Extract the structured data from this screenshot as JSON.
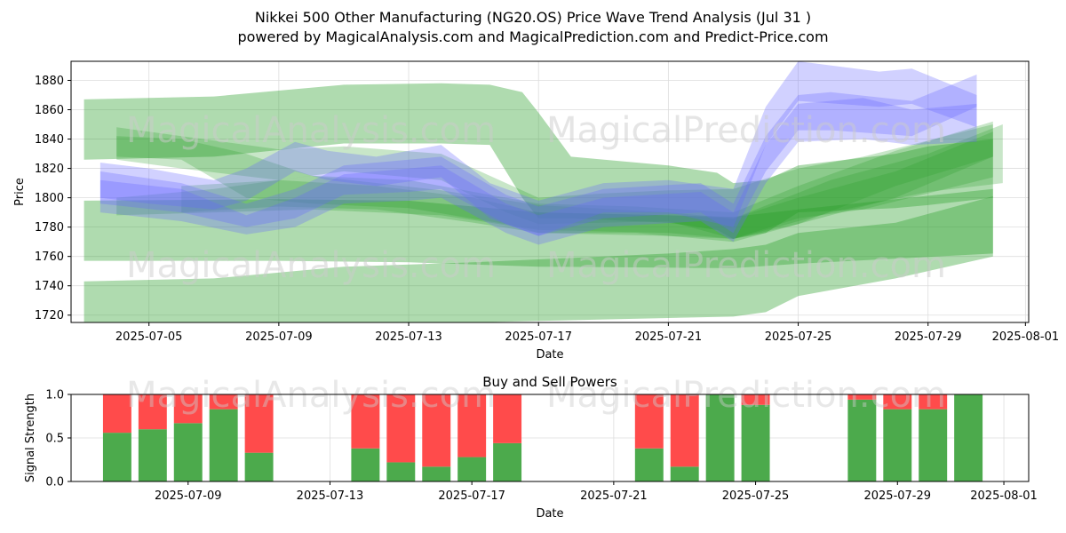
{
  "header": {
    "title": "Nikkei 500 Other Manufacturing (NG20.OS) Price Wave Trend Analysis (Jul 31 )",
    "subtitle": "powered by MagicalAnalysis.com and MagicalPrediction.com and Predict-Price.com"
  },
  "watermarks": [
    "MagicalAnalysis.com",
    "MagicalPrediction.com"
  ],
  "colors": {
    "band_green": "#2ca02c",
    "band_blue": "#6666ff",
    "buy_green": "#4caa4c",
    "sell_red": "#ff4b4b",
    "grid": "#dddddd"
  },
  "chart_data": [
    {
      "type": "area",
      "title": "",
      "xlabel": "Date",
      "ylabel": "Price",
      "xlim": [
        "2025-07-02.6",
        "2025-08-01.1"
      ],
      "ylim": [
        1715,
        1893
      ],
      "grid": true,
      "x_ticks": [
        "2025-07-05",
        "2025-07-09",
        "2025-07-13",
        "2025-07-17",
        "2025-07-21",
        "2025-07-25",
        "2025-07-29",
        "2025-08-01"
      ],
      "y_ticks": [
        1720,
        1740,
        1760,
        1780,
        1800,
        1820,
        1840,
        1860,
        1880
      ],
      "bands": [
        {
          "color": "green",
          "opacity": 0.38,
          "x": [
            "2025-07-03",
            "2025-07-07",
            "2025-07-11",
            "2025-07-14",
            "2025-07-15.5",
            "2025-07-16.5",
            "2025-07-17",
            "2025-07-18",
            "2025-07-21",
            "2025-07-22.5",
            "2025-07-23",
            "2025-07-24",
            "2025-07-25",
            "2025-07-28",
            "2025-07-29",
            "2025-07-31"
          ],
          "upper": [
            1867,
            1869,
            1877,
            1878,
            1877,
            1872,
            1858,
            1828,
            1822,
            1817,
            1810,
            1812,
            1822,
            1830,
            1835,
            1840
          ],
          "lower": [
            1826,
            1828,
            1837,
            1837,
            1836,
            1800,
            1786,
            1786,
            1783,
            1778,
            1772,
            1776,
            1790,
            1793,
            1795,
            1800
          ]
        },
        {
          "color": "green",
          "opacity": 0.38,
          "x": [
            "2025-07-03",
            "2025-07-09",
            "2025-07-13",
            "2025-07-17",
            "2025-07-23",
            "2025-07-25",
            "2025-07-31"
          ],
          "upper": [
            1798,
            1799,
            1798,
            1790,
            1787,
            1792,
            1806
          ],
          "lower": [
            1757,
            1757,
            1756,
            1753,
            1752,
            1755,
            1762
          ]
        },
        {
          "color": "green",
          "opacity": 0.38,
          "x": [
            "2025-07-03",
            "2025-07-07",
            "2025-07-11",
            "2025-07-15",
            "2025-07-17",
            "2025-07-21",
            "2025-07-23",
            "2025-07-24",
            "2025-07-25",
            "2025-07-28",
            "2025-07-31"
          ],
          "upper": [
            1743,
            1745,
            1753,
            1756,
            1758,
            1762,
            1765,
            1768,
            1776,
            1783,
            1801
          ],
          "lower": [
            1715,
            1715,
            1715,
            1715,
            1716,
            1718,
            1719,
            1722,
            1733,
            1745,
            1760
          ]
        },
        {
          "color": "green",
          "opacity": 0.26,
          "x": [
            "2025-07-04",
            "2025-07-06",
            "2025-07-09",
            "2025-07-11",
            "2025-07-14",
            "2025-07-16",
            "2025-07-17",
            "2025-07-19",
            "2025-07-21",
            "2025-07-23",
            "2025-07-25",
            "2025-07-27",
            "2025-07-31"
          ],
          "upper": [
            1848,
            1842,
            1833,
            1835,
            1830,
            1810,
            1800,
            1803,
            1805,
            1806,
            1820,
            1828,
            1850
          ],
          "lower": [
            1826,
            1820,
            1812,
            1818,
            1812,
            1790,
            1782,
            1783,
            1784,
            1772,
            1786,
            1792,
            1814
          ]
        },
        {
          "color": "green",
          "opacity": 0.26,
          "x": [
            "2025-07-04",
            "2025-07-06",
            "2025-07-08",
            "2025-07-10",
            "2025-07-13",
            "2025-07-16",
            "2025-07-17",
            "2025-07-20",
            "2025-07-23",
            "2025-07-25",
            "2025-07-28",
            "2025-07-31"
          ],
          "upper": [
            1842,
            1840,
            1830,
            1815,
            1812,
            1800,
            1796,
            1794,
            1790,
            1808,
            1832,
            1852
          ],
          "lower": [
            1828,
            1826,
            1800,
            1796,
            1793,
            1782,
            1776,
            1776,
            1770,
            1782,
            1808,
            1828
          ]
        },
        {
          "color": "green",
          "opacity": 0.26,
          "x": [
            "2025-07-04",
            "2025-07-07",
            "2025-07-10",
            "2025-07-14",
            "2025-07-17",
            "2025-07-21",
            "2025-07-23",
            "2025-07-25",
            "2025-07-28",
            "2025-07-31"
          ],
          "upper": [
            1800,
            1806,
            1815,
            1805,
            1795,
            1790,
            1786,
            1800,
            1818,
            1845
          ],
          "lower": [
            1788,
            1790,
            1792,
            1788,
            1778,
            1776,
            1772,
            1782,
            1800,
            1828
          ]
        },
        {
          "color": "green",
          "opacity": 0.26,
          "x": [
            "2025-07-06",
            "2025-07-09",
            "2025-07-12",
            "2025-07-15",
            "2025-07-17",
            "2025-07-21",
            "2025-07-23",
            "2025-07-26",
            "2025-07-29",
            "2025-07-31.3"
          ],
          "upper": [
            1808,
            1812,
            1808,
            1800,
            1790,
            1788,
            1786,
            1812,
            1830,
            1850
          ],
          "lower": [
            1790,
            1794,
            1792,
            1783,
            1776,
            1774,
            1772,
            1790,
            1804,
            1810
          ]
        },
        {
          "color": "blue",
          "opacity": 0.3,
          "x": [
            "2025-07-03.5",
            "2025-07-05",
            "2025-07-07",
            "2025-07-08",
            "2025-07-09.5",
            "2025-07-10.5",
            "2025-07-12",
            "2025-07-14",
            "2025-07-15.5",
            "2025-07-17",
            "2025-07-19",
            "2025-07-21",
            "2025-07-23",
            "2025-07-24",
            "2025-07-25",
            "2025-07-27.5",
            "2025-07-28.5",
            "2025-07-30.5"
          ],
          "upper": [
            1824,
            1820,
            1812,
            1820,
            1838,
            1832,
            1828,
            1836,
            1810,
            1798,
            1810,
            1812,
            1806,
            1862,
            1893,
            1886,
            1888,
            1870
          ],
          "lower": [
            1800,
            1796,
            1792,
            1798,
            1818,
            1812,
            1808,
            1814,
            1786,
            1774,
            1790,
            1790,
            1780,
            1836,
            1866,
            1862,
            1864,
            1848
          ]
        },
        {
          "color": "blue",
          "opacity": 0.3,
          "x": [
            "2025-07-03.5",
            "2025-07-06",
            "2025-07-08",
            "2025-07-09.5",
            "2025-07-11",
            "2025-07-13",
            "2025-07-14",
            "2025-07-16",
            "2025-07-17",
            "2025-07-19",
            "2025-07-22",
            "2025-07-23",
            "2025-07-24",
            "2025-07-25",
            "2025-07-27",
            "2025-07-28.5",
            "2025-07-30.5"
          ],
          "upper": [
            1812,
            1806,
            1788,
            1800,
            1816,
            1820,
            1822,
            1796,
            1788,
            1800,
            1804,
            1790,
            1836,
            1864,
            1868,
            1860,
            1864
          ],
          "lower": [
            1790,
            1784,
            1775,
            1780,
            1796,
            1798,
            1800,
            1776,
            1768,
            1780,
            1784,
            1770,
            1810,
            1838,
            1840,
            1836,
            1838
          ]
        },
        {
          "color": "blue",
          "opacity": 0.3,
          "x": [
            "2025-07-03.5",
            "2025-07-06",
            "2025-07-08",
            "2025-07-09.5",
            "2025-07-11",
            "2025-07-13",
            "2025-07-14",
            "2025-07-16",
            "2025-07-17",
            "2025-07-19",
            "2025-07-22",
            "2025-07-23",
            "2025-07-24",
            "2025-07-25",
            "2025-07-26",
            "2025-07-28.5",
            "2025-07-30.5"
          ],
          "upper": [
            1818,
            1810,
            1796,
            1806,
            1822,
            1826,
            1828,
            1802,
            1794,
            1806,
            1810,
            1796,
            1842,
            1870,
            1872,
            1866,
            1884
          ],
          "lower": [
            1796,
            1790,
            1780,
            1786,
            1802,
            1804,
            1806,
            1782,
            1774,
            1786,
            1790,
            1776,
            1818,
            1846,
            1846,
            1842,
            1862
          ]
        }
      ]
    },
    {
      "type": "bar",
      "title": "Buy and Sell Powers",
      "xlabel": "Date",
      "ylabel": "Signal Strength",
      "ylim": [
        0,
        1
      ],
      "xlim": [
        "2025-07-05.7",
        "2025-08-01.7"
      ],
      "grid": true,
      "x_ticks": [
        "2025-07-09",
        "2025-07-13",
        "2025-07-17",
        "2025-07-21",
        "2025-07-25",
        "2025-07-29",
        "2025-08-01"
      ],
      "y_ticks": [
        "0.0",
        "0.5",
        "1.0"
      ],
      "series": [
        {
          "name": "",
          "color": "green"
        },
        {
          "name": "",
          "color": "red"
        }
      ],
      "dates": [
        "2025-07-07",
        "2025-07-08",
        "2025-07-09",
        "2025-07-10",
        "2025-07-11",
        "2025-07-14",
        "2025-07-15",
        "2025-07-16",
        "2025-07-17",
        "2025-07-18",
        "2025-07-22",
        "2025-07-23",
        "2025-07-24",
        "2025-07-25",
        "2025-07-28",
        "2025-07-29",
        "2025-07-30",
        "2025-07-31"
      ],
      "buy": [
        0.56,
        0.6,
        0.67,
        0.83,
        0.33,
        0.38,
        0.22,
        0.17,
        0.28,
        0.44,
        0.38,
        0.17,
        1.0,
        0.88,
        0.94,
        0.83,
        0.83,
        1.0
      ],
      "sell": [
        0.44,
        0.4,
        0.33,
        0.17,
        0.67,
        0.62,
        0.78,
        0.83,
        0.72,
        0.56,
        0.62,
        0.83,
        0.0,
        0.12,
        0.06,
        0.17,
        0.17,
        0.0
      ]
    }
  ]
}
